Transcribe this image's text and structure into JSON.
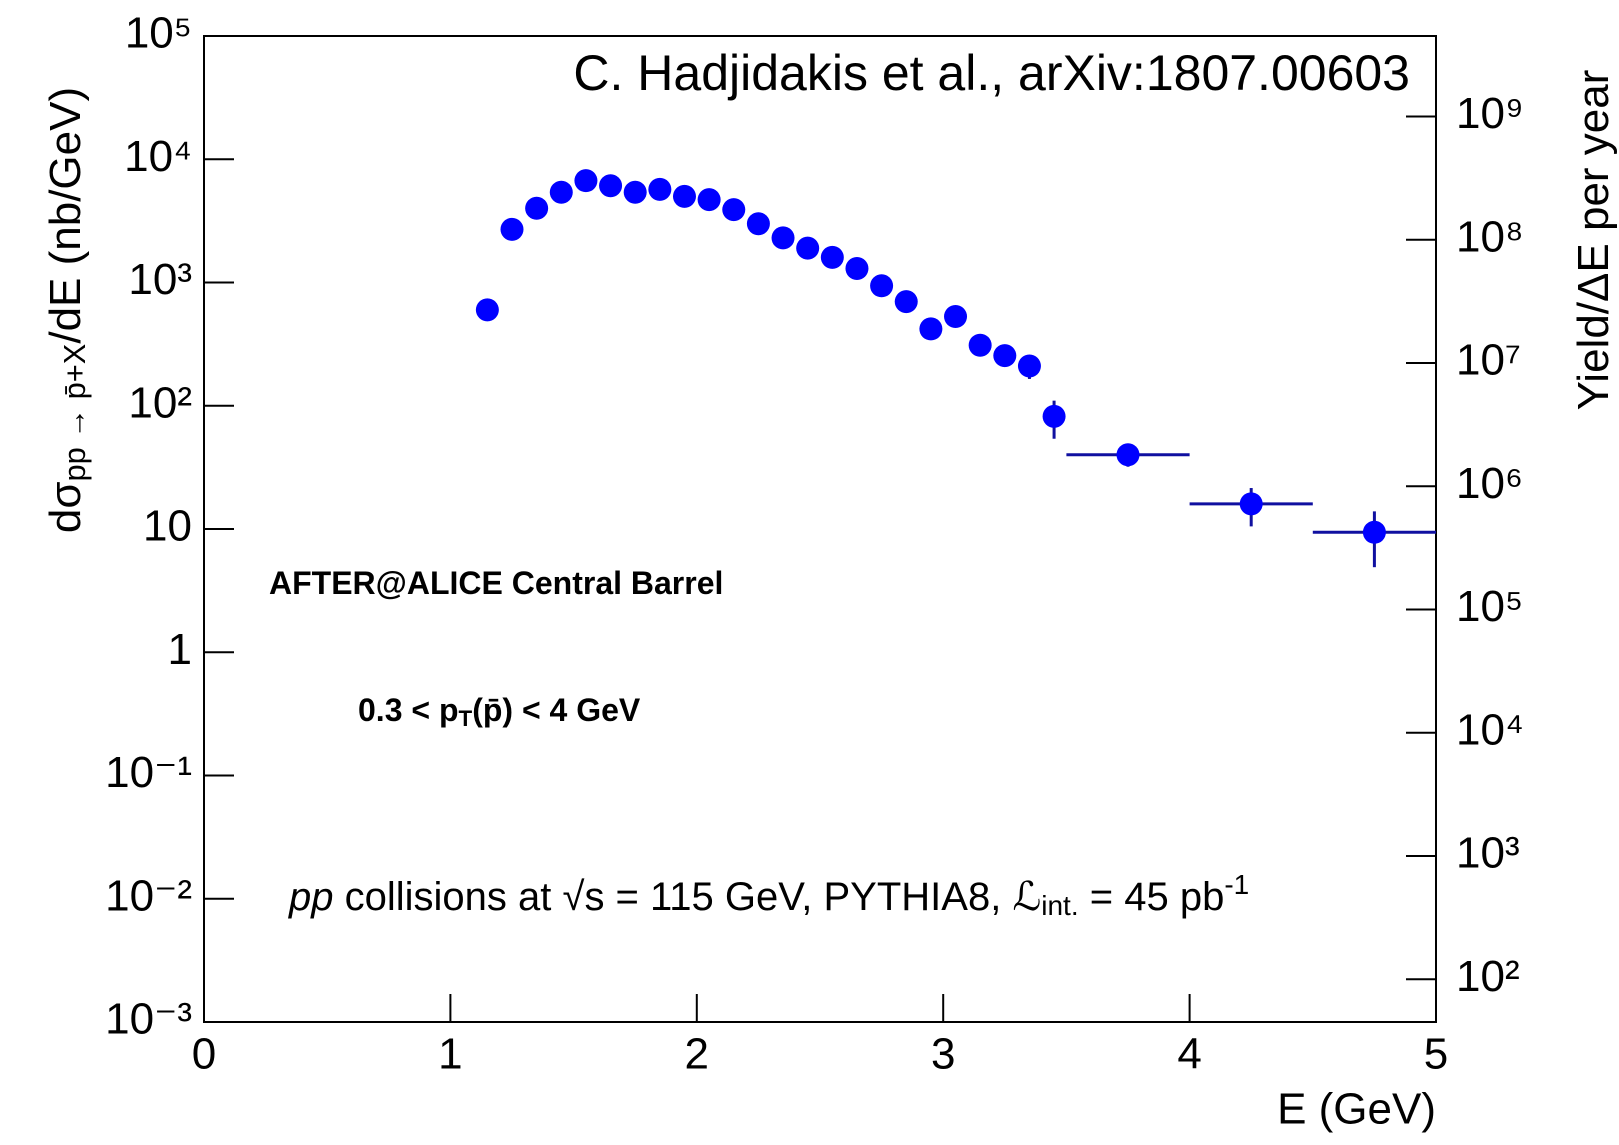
{
  "chart_data": {
    "type": "scatter",
    "title": "C. Hadjidakis et al., arXiv:1807.00603",
    "xlabel": "E (GeV)",
    "ylabel": [
      {
        "text": "dσ"
      },
      {
        "text": "pp → p̄+X",
        "style": "sub"
      },
      {
        "text": "/dE (nb/GeV)"
      }
    ],
    "y2label": [
      {
        "text": "Yield/ΔE  per year"
      }
    ],
    "annotations": [
      [
        {
          "text": "AFTER@ALICE Central Barrel",
          "style": "bold"
        }
      ],
      [
        {
          "text": "0.3 < p",
          "style": "bold"
        },
        {
          "text": "T",
          "style": "boldsub"
        },
        {
          "text": "(p̄) < 4 GeV",
          "style": "bold"
        }
      ],
      [
        {
          "text": "pp",
          "style": "italic"
        },
        {
          "text": " collisions at "
        },
        {
          "text": "√s = 115 GeV, PYTHIA8, "
        },
        {
          "text": "ℒ",
          "style": "italic"
        },
        {
          "text": "int.",
          "style": "sub"
        },
        {
          "text": " = 45 pb"
        },
        {
          "text": "-1",
          "style": "sup"
        }
      ]
    ],
    "xlim": [
      0,
      5
    ],
    "xticks": [
      0,
      1,
      2,
      3,
      4,
      5
    ],
    "ylim": [
      0.001,
      100000
    ],
    "yscale": "log",
    "yticks": [
      {
        "value": 0.001,
        "label": "10⁻³"
      },
      {
        "value": 0.01,
        "label": "10⁻²"
      },
      {
        "value": 0.1,
        "label": "10⁻¹"
      },
      1,
      10,
      {
        "value": 100,
        "label": "10²"
      },
      {
        "value": 1000,
        "label": "10³"
      },
      {
        "value": 10000,
        "label": "10⁴"
      },
      {
        "value": 100000,
        "label": "10⁵"
      }
    ],
    "y2lim": [
      45,
      4500000000
    ],
    "y2ticks": [
      {
        "value": 100,
        "label": "10²"
      },
      {
        "value": 1000,
        "label": "10³"
      },
      {
        "value": 10000,
        "label": "10⁴"
      },
      {
        "value": 100000,
        "label": "10⁵"
      },
      {
        "value": 1000000,
        "label": "10⁶"
      },
      {
        "value": 10000000,
        "label": "10⁷"
      },
      {
        "value": 100000000,
        "label": "10⁸"
      },
      {
        "value": 1000000000,
        "label": "10⁹"
      }
    ],
    "series": [
      {
        "color": "#0000ff",
        "errcolor": "#1010a0",
        "x": [
          1.15,
          1.25,
          1.35,
          1.45,
          1.55,
          1.65,
          1.75,
          1.85,
          1.95,
          2.05,
          2.15,
          2.25,
          2.35,
          2.45,
          2.55,
          2.65,
          2.75,
          2.85,
          2.95,
          3.05,
          3.15,
          3.25,
          3.35,
          3.45,
          3.75,
          4.25,
          4.75
        ],
        "values": [
          600,
          2700,
          4000,
          5400,
          6700,
          6100,
          5400,
          5700,
          5000,
          4700,
          3900,
          3000,
          2300,
          1900,
          1600,
          1300,
          940,
          700,
          420,
          530,
          310,
          255,
          210,
          82,
          40,
          16,
          9.4
        ],
        "yerr": [
          0,
          0,
          0,
          0,
          0,
          0,
          0,
          0,
          0,
          0,
          0,
          0,
          0,
          0,
          0,
          0,
          0,
          0,
          0,
          0,
          0,
          40,
          45,
          28,
          8,
          5.5,
          4.5
        ],
        "xerr": [
          0,
          0,
          0,
          0,
          0,
          0,
          0,
          0,
          0,
          0,
          0,
          0,
          0,
          0,
          0,
          0,
          0,
          0,
          0,
          0,
          0,
          0,
          0,
          0,
          0.25,
          0.25,
          0.25
        ]
      }
    ]
  }
}
